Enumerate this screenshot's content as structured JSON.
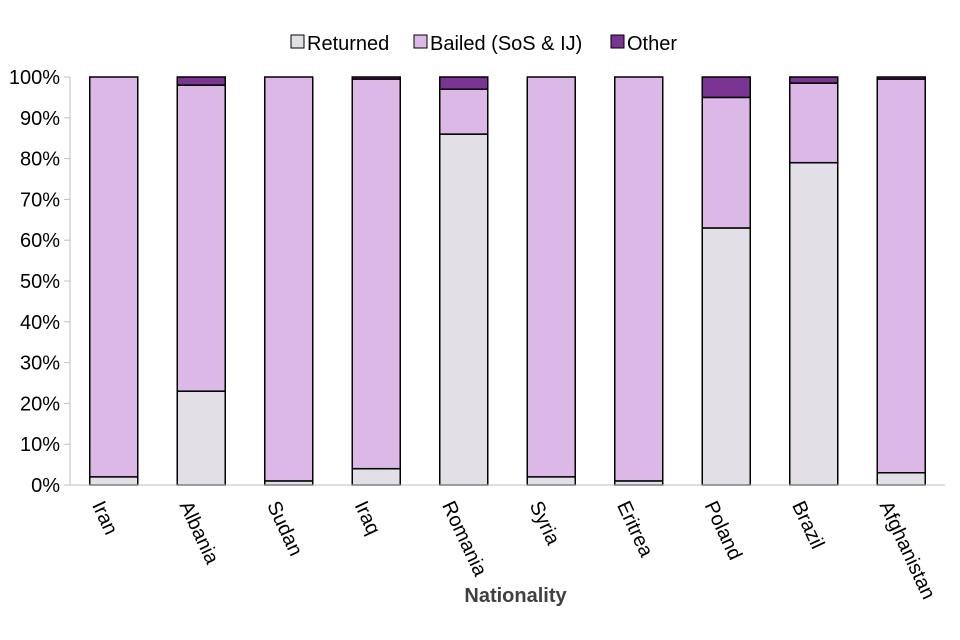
{
  "chart_data": {
    "type": "bar",
    "stacked": true,
    "percent": true,
    "title": "",
    "xlabel": "Nationality",
    "ylabel": "",
    "ylim": [
      0,
      100
    ],
    "ytick_values": [
      0,
      10,
      20,
      30,
      40,
      50,
      60,
      70,
      80,
      90,
      100
    ],
    "ytick_labels": [
      "0%",
      "10%",
      "20%",
      "30%",
      "40%",
      "50%",
      "60%",
      "70%",
      "80%",
      "90%",
      "100%"
    ],
    "grid": false,
    "legend_position": "top-center",
    "categories": [
      "Iran",
      "Albania",
      "Sudan",
      "Iraq",
      "Romania",
      "Syria",
      "Eritrea",
      "Poland",
      "Brazil",
      "Afghanistan"
    ],
    "series": [
      {
        "name": "Returned",
        "color": "#e2e0e6",
        "values": [
          2,
          23,
          1,
          4,
          86,
          2,
          1,
          63,
          79,
          3
        ]
      },
      {
        "name": "Bailed (SoS & IJ)",
        "color": "#dcb8e6",
        "values": [
          98,
          75,
          99,
          95.5,
          11,
          98,
          99,
          32,
          19.5,
          96.5
        ]
      },
      {
        "name": "Other",
        "color": "#7a3592",
        "values": [
          0,
          2,
          0,
          0.5,
          3,
          0,
          0,
          5,
          1.5,
          0.5
        ]
      }
    ]
  }
}
